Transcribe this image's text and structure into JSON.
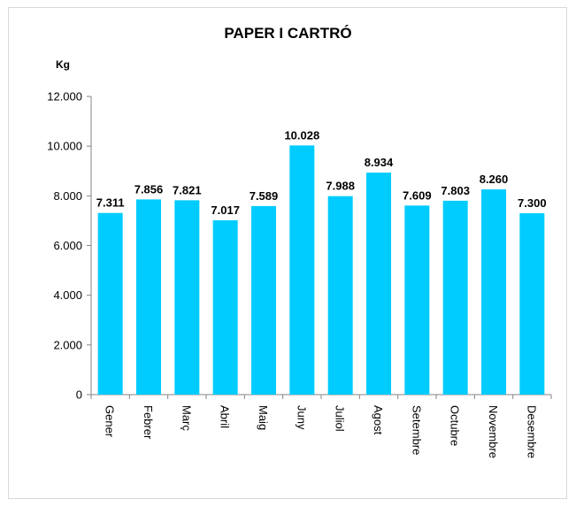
{
  "chart_data": {
    "type": "bar",
    "title": "PAPER I CARTRÓ",
    "ylabel": "Kg",
    "xlabel": "",
    "categories": [
      "Gener",
      "Febrer",
      "Març",
      "Abril",
      "Maig",
      "Juny",
      "Juliol",
      "Agost",
      "Setembre",
      "Octubre",
      "Novembre",
      "Desembre"
    ],
    "values": [
      7311,
      7856,
      7821,
      7017,
      7589,
      10028,
      7988,
      8934,
      7609,
      7803,
      8260,
      7300
    ],
    "data_labels": [
      "7.311",
      "7.856",
      "7.821",
      "7.017",
      "7.589",
      "10.028",
      "7.988",
      "8.934",
      "7.609",
      "7.803",
      "8.260",
      "7.300"
    ],
    "ylim": [
      0,
      12000
    ],
    "yticks": [
      0,
      2000,
      4000,
      6000,
      8000,
      10000,
      12000
    ],
    "ytick_labels": [
      "0",
      "2.000",
      "4.000",
      "6.000",
      "8.000",
      "10.000",
      "12.000"
    ],
    "grid": false,
    "bar_color": "#00ccff",
    "legend": "none"
  }
}
